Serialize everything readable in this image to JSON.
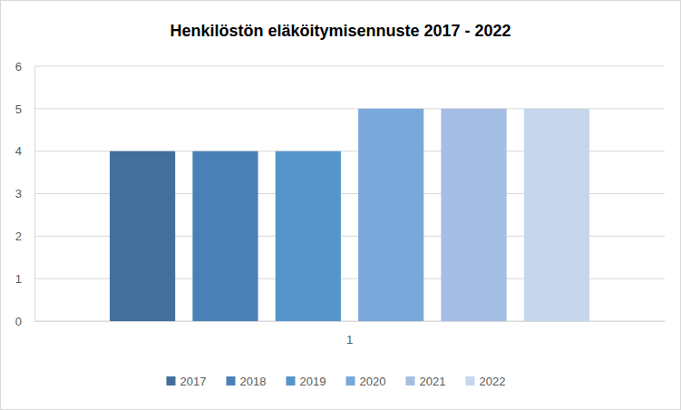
{
  "chart_data": {
    "type": "bar",
    "title": "Henkilöstön eläköitymisennuste 2017 - 2022",
    "categories": [
      "1"
    ],
    "series": [
      {
        "name": "2017",
        "color": "#426f9b",
        "values": [
          4
        ]
      },
      {
        "name": "2018",
        "color": "#4b80b6",
        "values": [
          4
        ]
      },
      {
        "name": "2019",
        "color": "#5694cc",
        "values": [
          4
        ]
      },
      {
        "name": "2020",
        "color": "#7aa8da",
        "values": [
          5
        ]
      },
      {
        "name": "2021",
        "color": "#a4bfe3",
        "values": [
          5
        ]
      },
      {
        "name": "2022",
        "color": "#c6d6ec",
        "values": [
          5
        ]
      }
    ],
    "ylim": [
      0,
      6
    ],
    "yticks": [
      0,
      1,
      2,
      3,
      4,
      5,
      6
    ],
    "grid": true,
    "legend": "bottom"
  }
}
